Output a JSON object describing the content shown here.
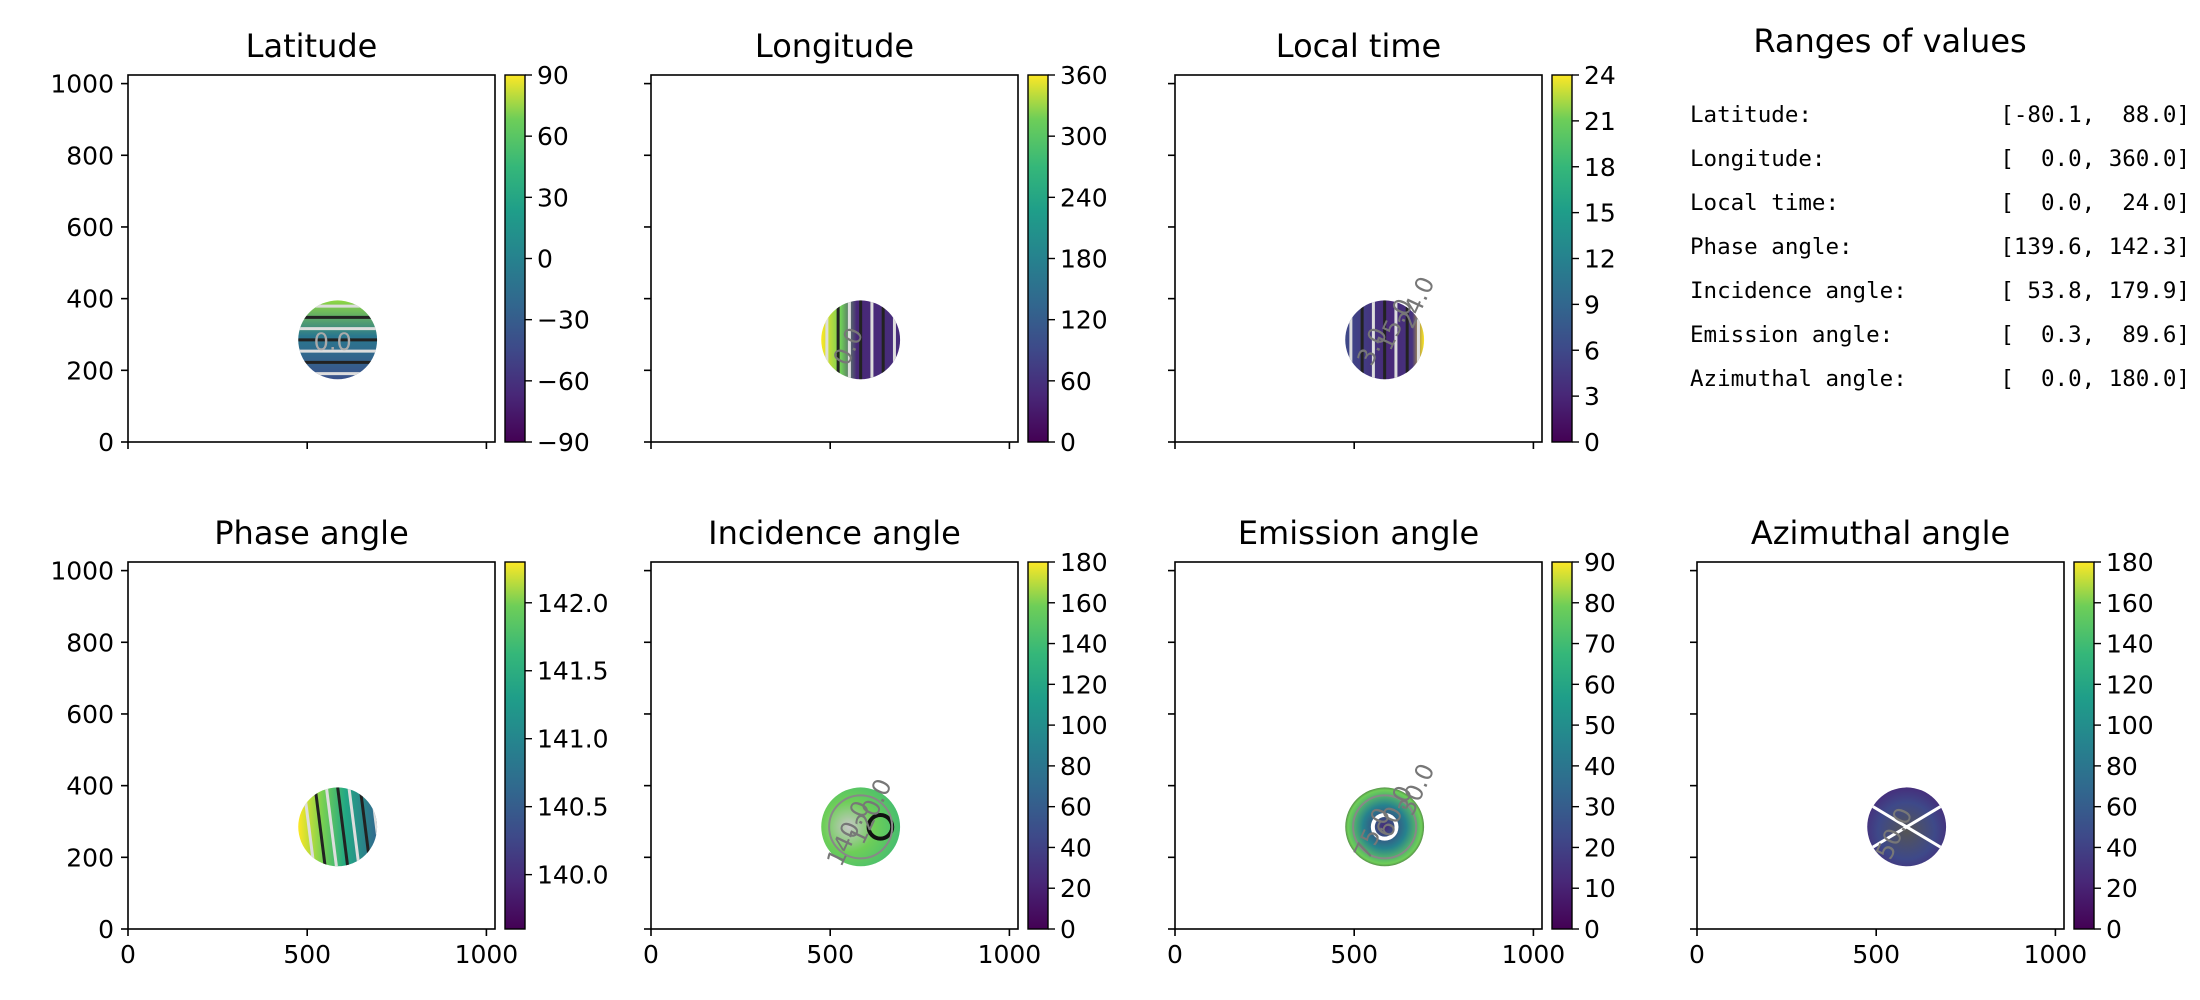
{
  "figure": {
    "ranges_title": "Ranges of values",
    "ranges": [
      {
        "label": "Latitude:",
        "value": "[-80.1,  88.0]"
      },
      {
        "label": "Longitude:",
        "value": "[  0.0, 360.0]"
      },
      {
        "label": "Local time:",
        "value": "[  0.0,  24.0]"
      },
      {
        "label": "Phase angle:",
        "value": "[139.6, 142.3]"
      },
      {
        "label": "Incidence angle:",
        "value": "[ 53.8, 179.9]"
      },
      {
        "label": "Emission angle:",
        "value": "[  0.3,  89.6]"
      },
      {
        "label": "Azimuthal angle:",
        "value": "[  0.0, 180.0]"
      }
    ]
  },
  "chart_data": [
    {
      "type": "heatmap",
      "title": "Latitude",
      "xlim": [
        0,
        1024
      ],
      "ylim": [
        0,
        1024
      ],
      "xticks": [
        0,
        500,
        1000
      ],
      "yticks": [
        0,
        200,
        400,
        600,
        800,
        1000
      ],
      "x_ticklabels_shown": false,
      "y_ticklabels_shown": true,
      "colorbar": {
        "range": [
          -90,
          90
        ],
        "ticks": [
          90,
          60,
          30,
          0,
          -30,
          -60,
          -90
        ],
        "ticklabels": [
          "90",
          "60",
          "30",
          "0",
          "−30",
          "−60",
          "−90"
        ]
      },
      "disk": {
        "cx": 585,
        "cy": 285,
        "r": 110
      },
      "contour_labels": [
        "0.0"
      ]
    },
    {
      "type": "heatmap",
      "title": "Longitude",
      "xlim": [
        0,
        1024
      ],
      "ylim": [
        0,
        1024
      ],
      "xticks": [
        0,
        500,
        1000
      ],
      "yticks": [
        0,
        200,
        400,
        600,
        800,
        1000
      ],
      "x_ticklabels_shown": false,
      "y_ticklabels_shown": false,
      "colorbar": {
        "range": [
          0,
          360
        ],
        "ticks": [
          360,
          300,
          240,
          180,
          120,
          60,
          0
        ],
        "ticklabels": [
          "360",
          "300",
          "240",
          "180",
          "120",
          "60",
          "0"
        ]
      },
      "disk": {
        "cx": 585,
        "cy": 285,
        "r": 110
      },
      "contour_labels": [
        "0.0"
      ]
    },
    {
      "type": "heatmap",
      "title": "Local time",
      "xlim": [
        0,
        1024
      ],
      "ylim": [
        0,
        1024
      ],
      "xticks": [
        0,
        500,
        1000
      ],
      "yticks": [
        0,
        200,
        400,
        600,
        800,
        1000
      ],
      "x_ticklabels_shown": false,
      "y_ticklabels_shown": false,
      "colorbar": {
        "range": [
          0,
          24
        ],
        "ticks": [
          24,
          21,
          18,
          15,
          12,
          9,
          6,
          3,
          0
        ],
        "ticklabels": [
          "24",
          "21",
          "18",
          "15",
          "12",
          "9",
          "6",
          "3",
          "0"
        ]
      },
      "disk": {
        "cx": 585,
        "cy": 285,
        "r": 110
      },
      "contour_labels": [
        "3.0",
        "15.0",
        "24.0"
      ]
    },
    {
      "type": "heatmap",
      "title": "Phase angle",
      "xlim": [
        0,
        1024
      ],
      "ylim": [
        0,
        1024
      ],
      "xticks": [
        0,
        500,
        1000
      ],
      "yticks": [
        0,
        200,
        400,
        600,
        800,
        1000
      ],
      "x_ticklabels_shown": true,
      "y_ticklabels_shown": true,
      "colorbar": {
        "range": [
          139.6,
          142.3
        ],
        "ticks": [
          142.0,
          141.5,
          141.0,
          140.5,
          140.0
        ],
        "ticklabels": [
          "142.0",
          "141.5",
          "141.0",
          "140.5",
          "140.0"
        ]
      },
      "disk": {
        "cx": 585,
        "cy": 285,
        "r": 110
      },
      "contour_labels": []
    },
    {
      "type": "heatmap",
      "title": "Incidence angle",
      "xlim": [
        0,
        1024
      ],
      "ylim": [
        0,
        1024
      ],
      "xticks": [
        0,
        500,
        1000
      ],
      "yticks": [
        0,
        200,
        400,
        600,
        800,
        1000
      ],
      "x_ticklabels_shown": true,
      "y_ticklabels_shown": false,
      "colorbar": {
        "range": [
          0,
          180
        ],
        "ticks": [
          180,
          160,
          140,
          120,
          100,
          80,
          60,
          40,
          20,
          0
        ],
        "ticklabels": [
          "180",
          "160",
          "140",
          "120",
          "100",
          "80",
          "60",
          "40",
          "20",
          "0"
        ]
      },
      "disk": {
        "cx": 585,
        "cy": 285,
        "r": 110
      },
      "contour_labels": [
        "140.0",
        "120.0"
      ]
    },
    {
      "type": "heatmap",
      "title": "Emission angle",
      "xlim": [
        0,
        1024
      ],
      "ylim": [
        0,
        1024
      ],
      "xticks": [
        0,
        500,
        1000
      ],
      "yticks": [
        0,
        200,
        400,
        600,
        800,
        1000
      ],
      "x_ticklabels_shown": true,
      "y_ticklabels_shown": false,
      "colorbar": {
        "range": [
          0,
          90
        ],
        "ticks": [
          90,
          80,
          70,
          60,
          50,
          40,
          30,
          20,
          10,
          0
        ],
        "ticklabels": [
          "90",
          "80",
          "70",
          "60",
          "50",
          "40",
          "30",
          "20",
          "10",
          "0"
        ]
      },
      "disk": {
        "cx": 585,
        "cy": 285,
        "r": 110
      },
      "contour_labels": [
        "75.0",
        "60.0",
        "30.0"
      ]
    },
    {
      "type": "heatmap",
      "title": "Azimuthal angle",
      "xlim": [
        0,
        1024
      ],
      "ylim": [
        0,
        1024
      ],
      "xticks": [
        0,
        500,
        1000
      ],
      "yticks": [
        0,
        200,
        400,
        600,
        800,
        1000
      ],
      "x_ticklabels_shown": true,
      "y_ticklabels_shown": false,
      "colorbar": {
        "range": [
          0,
          180
        ],
        "ticks": [
          180,
          160,
          140,
          120,
          100,
          80,
          60,
          40,
          20,
          0
        ],
        "ticklabels": [
          "180",
          "160",
          "140",
          "120",
          "100",
          "80",
          "60",
          "40",
          "20",
          "0"
        ]
      },
      "disk": {
        "cx": 585,
        "cy": 285,
        "r": 110
      },
      "contour_labels": [
        "50.0"
      ]
    }
  ]
}
